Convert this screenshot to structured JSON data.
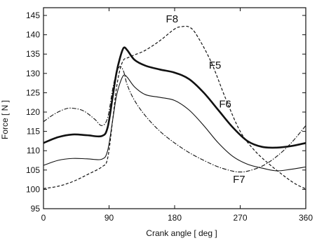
{
  "chart_data": {
    "type": "line",
    "xlabel": "Crank angle [ deg ]",
    "ylabel": "Force [ N ]",
    "xlim": [
      0,
      360
    ],
    "ylim": [
      95,
      147
    ],
    "xticks": [
      0,
      90,
      180,
      270,
      360
    ],
    "yticks": [
      95,
      100,
      105,
      110,
      115,
      120,
      125,
      130,
      135,
      140,
      145
    ],
    "grid": false,
    "series": [
      {
        "name": "F5",
        "style": "solid-thick",
        "x": [
          0,
          20,
          40,
          60,
          80,
          88,
          95,
          100,
          105,
          110,
          115,
          125,
          140,
          160,
          180,
          200,
          220,
          240,
          260,
          280,
          300,
          320,
          340,
          360
        ],
        "y": [
          112,
          113.5,
          114.2,
          114,
          113.8,
          116,
          124,
          130,
          134,
          136.6,
          136,
          133.5,
          132,
          131,
          130.2,
          128.5,
          125,
          120.5,
          116,
          112.5,
          111,
          110.8,
          111.2,
          112
        ]
      },
      {
        "name": "F6",
        "style": "solid-thin",
        "x": [
          0,
          20,
          40,
          60,
          80,
          88,
          95,
          100,
          105,
          110,
          115,
          125,
          140,
          160,
          180,
          200,
          220,
          240,
          260,
          280,
          300,
          320,
          340,
          360
        ],
        "y": [
          106.2,
          107.5,
          108,
          107.9,
          107.8,
          110,
          118,
          124,
          127.5,
          129.5,
          129,
          126.5,
          124.5,
          123.8,
          123,
          120.5,
          116.5,
          112,
          108.5,
          106.5,
          105.5,
          104.8,
          105.2,
          105.8
        ]
      },
      {
        "name": "F7",
        "style": "dash-dot",
        "x": [
          0,
          15,
          30,
          40,
          55,
          70,
          80,
          88,
          95,
          100,
          105,
          110,
          115,
          125,
          140,
          160,
          180,
          200,
          220,
          240,
          260,
          270,
          280,
          300,
          320,
          340,
          360
        ],
        "y": [
          117.5,
          119.5,
          120.8,
          121,
          120.3,
          118.2,
          116.5,
          118.5,
          126,
          130,
          131.8,
          130.5,
          127,
          123,
          119,
          115,
          112,
          109.5,
          107.5,
          105.8,
          104.7,
          104.5,
          104.7,
          106,
          108.5,
          112,
          116.5
        ]
      },
      {
        "name": "F8",
        "style": "dashed",
        "x": [
          0,
          20,
          40,
          60,
          80,
          88,
          95,
          100,
          105,
          110,
          115,
          125,
          140,
          160,
          180,
          190,
          200,
          210,
          230,
          250,
          270,
          290,
          310,
          330,
          345,
          360
        ],
        "y": [
          100.2,
          100.8,
          102,
          103.8,
          105.8,
          108,
          118,
          126,
          131,
          133.5,
          134,
          134.8,
          136,
          138.5,
          141.5,
          142.1,
          142,
          140,
          133,
          123.5,
          115,
          110,
          106.5,
          103.5,
          101.5,
          100.1
        ]
      }
    ],
    "labels": [
      {
        "text": "F8",
        "x": 168,
        "y": 143.2
      },
      {
        "text": "F5",
        "x": 227,
        "y": 131.2
      },
      {
        "text": "F6",
        "x": 241,
        "y": 121.2
      },
      {
        "text": "F7",
        "x": 260,
        "y": 101.7
      }
    ]
  }
}
